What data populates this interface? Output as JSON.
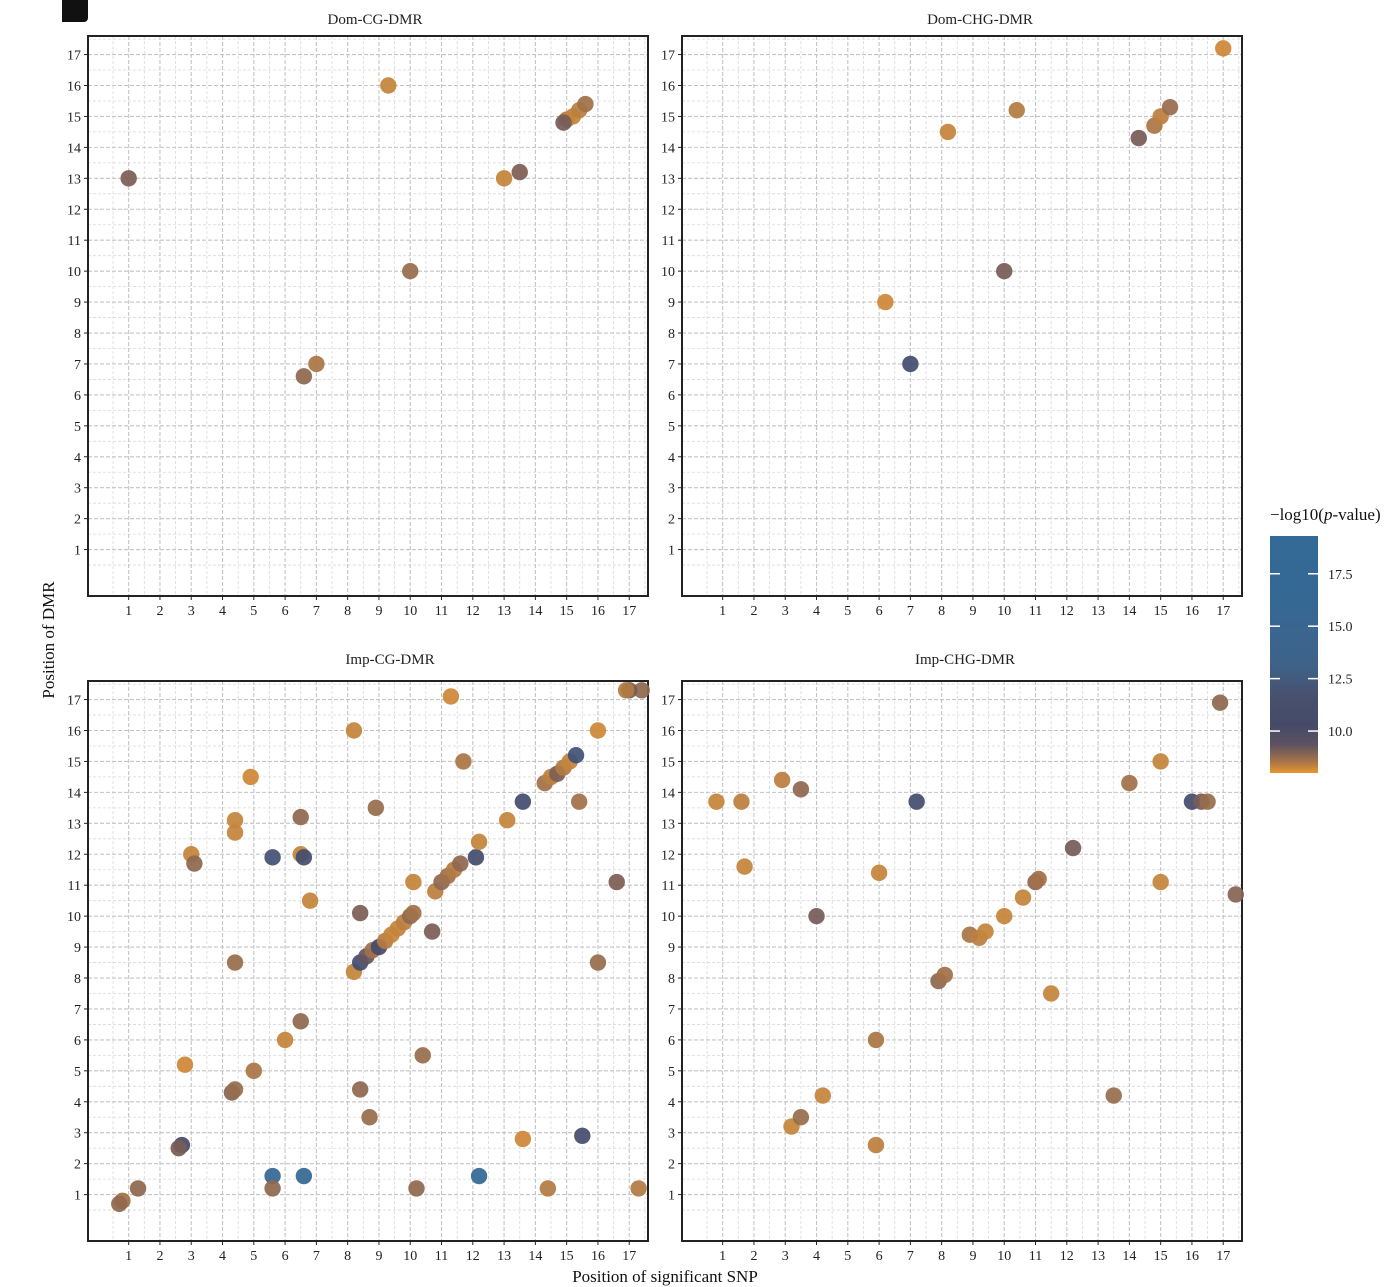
{
  "chart_data": [
    {
      "type": "scatter",
      "title": "Dom-CG-DMR",
      "x_ticks": [
        "1",
        "2",
        "3",
        "4",
        "5",
        "6",
        "7",
        "8",
        "9",
        "10",
        "11",
        "12",
        "13",
        "14",
        "15",
        "16",
        "17"
      ],
      "y_ticks": [
        "1",
        "2",
        "3",
        "4",
        "5",
        "6",
        "7",
        "8",
        "9",
        "10",
        "11",
        "12",
        "13",
        "14",
        "15",
        "16",
        "17"
      ],
      "xlim": [
        -0.3,
        17.6
      ],
      "ylim": [
        -0.5,
        17.6
      ],
      "grid": true,
      "points": [
        {
          "x": 1.0,
          "y": 13.0,
          "p": 9.2
        },
        {
          "x": 9.3,
          "y": 16.0,
          "p": 8.4
        },
        {
          "x": 15.0,
          "y": 14.9,
          "p": 8.6
        },
        {
          "x": 15.2,
          "y": 15.0,
          "p": 8.4
        },
        {
          "x": 15.4,
          "y": 15.2,
          "p": 8.5
        },
        {
          "x": 15.6,
          "y": 15.4,
          "p": 8.8
        },
        {
          "x": 14.9,
          "y": 14.8,
          "p": 9.4
        },
        {
          "x": 13.0,
          "y": 13.0,
          "p": 8.4
        },
        {
          "x": 13.5,
          "y": 13.2,
          "p": 9.2
        },
        {
          "x": 10.0,
          "y": 10.0,
          "p": 8.9
        },
        {
          "x": 6.6,
          "y": 6.6,
          "p": 9.0
        },
        {
          "x": 7.0,
          "y": 7.0,
          "p": 8.7
        }
      ]
    },
    {
      "type": "scatter",
      "title": "Dom-CHG-DMR",
      "x_ticks": [
        "1",
        "2",
        "3",
        "4",
        "5",
        "6",
        "7",
        "8",
        "9",
        "10",
        "11",
        "12",
        "13",
        "14",
        "15",
        "16",
        "17"
      ],
      "y_ticks": [
        "1",
        "2",
        "3",
        "4",
        "5",
        "6",
        "7",
        "8",
        "9",
        "10",
        "11",
        "12",
        "13",
        "14",
        "15",
        "16",
        "17"
      ],
      "xlim": [
        -0.3,
        17.6
      ],
      "ylim": [
        -0.5,
        17.6
      ],
      "grid": true,
      "points": [
        {
          "x": 17.0,
          "y": 17.2,
          "p": 8.3
        },
        {
          "x": 8.2,
          "y": 14.5,
          "p": 8.4
        },
        {
          "x": 10.4,
          "y": 15.2,
          "p": 8.6
        },
        {
          "x": 14.3,
          "y": 14.3,
          "p": 9.3
        },
        {
          "x": 14.8,
          "y": 14.7,
          "p": 8.7
        },
        {
          "x": 15.0,
          "y": 15.0,
          "p": 8.5
        },
        {
          "x": 15.3,
          "y": 15.3,
          "p": 8.9
        },
        {
          "x": 10.0,
          "y": 10.0,
          "p": 9.3
        },
        {
          "x": 6.2,
          "y": 9.0,
          "p": 8.3
        },
        {
          "x": 7.0,
          "y": 7.0,
          "p": 11.0
        }
      ]
    },
    {
      "type": "scatter",
      "title": "Imp-CG-DMR",
      "x_ticks": [
        "1",
        "2",
        "3",
        "4",
        "5",
        "6",
        "7",
        "8",
        "9",
        "10",
        "11",
        "12",
        "13",
        "14",
        "15",
        "16",
        "17"
      ],
      "y_ticks": [
        "1",
        "2",
        "3",
        "4",
        "5",
        "6",
        "7",
        "8",
        "9",
        "10",
        "11",
        "12",
        "13",
        "14",
        "15",
        "16",
        "17"
      ],
      "xlim": [
        -0.3,
        17.6
      ],
      "ylim": [
        -0.5,
        17.6
      ],
      "grid": true,
      "points": [
        {
          "x": 1.3,
          "y": 1.2,
          "p": 9.0
        },
        {
          "x": 0.8,
          "y": 0.8,
          "p": 8.8
        },
        {
          "x": 0.7,
          "y": 0.7,
          "p": 9.0
        },
        {
          "x": 2.7,
          "y": 2.6,
          "p": 10.5
        },
        {
          "x": 2.6,
          "y": 2.5,
          "p": 9.3
        },
        {
          "x": 3.0,
          "y": 12.0,
          "p": 8.4
        },
        {
          "x": 3.1,
          "y": 11.7,
          "p": 9.0
        },
        {
          "x": 2.8,
          "y": 5.2,
          "p": 8.3
        },
        {
          "x": 4.4,
          "y": 13.1,
          "p": 8.4
        },
        {
          "x": 4.4,
          "y": 12.7,
          "p": 8.4
        },
        {
          "x": 4.4,
          "y": 8.5,
          "p": 8.9
        },
        {
          "x": 4.3,
          "y": 4.3,
          "p": 9.1
        },
        {
          "x": 4.4,
          "y": 4.4,
          "p": 8.9
        },
        {
          "x": 4.9,
          "y": 14.5,
          "p": 8.3
        },
        {
          "x": 5.0,
          "y": 5.0,
          "p": 8.7
        },
        {
          "x": 5.6,
          "y": 11.9,
          "p": 11.5
        },
        {
          "x": 5.6,
          "y": 1.6,
          "p": 14.5
        },
        {
          "x": 5.6,
          "y": 1.2,
          "p": 9.0
        },
        {
          "x": 6.0,
          "y": 6.0,
          "p": 8.4
        },
        {
          "x": 6.5,
          "y": 13.2,
          "p": 9.0
        },
        {
          "x": 6.5,
          "y": 12.0,
          "p": 8.4
        },
        {
          "x": 6.6,
          "y": 11.9,
          "p": 11.0
        },
        {
          "x": 6.5,
          "y": 6.6,
          "p": 9.0
        },
        {
          "x": 6.6,
          "y": 1.6,
          "p": 14.5
        },
        {
          "x": 6.8,
          "y": 10.5,
          "p": 8.4
        },
        {
          "x": 8.2,
          "y": 16.0,
          "p": 8.4
        },
        {
          "x": 8.9,
          "y": 13.5,
          "p": 8.9
        },
        {
          "x": 8.4,
          "y": 10.1,
          "p": 9.2
        },
        {
          "x": 8.4,
          "y": 4.4,
          "p": 9.0
        },
        {
          "x": 8.7,
          "y": 3.5,
          "p": 8.9
        },
        {
          "x": 8.2,
          "y": 8.2,
          "p": 8.4
        },
        {
          "x": 8.4,
          "y": 8.5,
          "p": 11.0
        },
        {
          "x": 8.6,
          "y": 8.7,
          "p": 9.8
        },
        {
          "x": 8.8,
          "y": 8.9,
          "p": 8.8
        },
        {
          "x": 9.0,
          "y": 9.0,
          "p": 10.5
        },
        {
          "x": 9.2,
          "y": 9.2,
          "p": 8.6
        },
        {
          "x": 9.4,
          "y": 9.4,
          "p": 8.4
        },
        {
          "x": 9.6,
          "y": 9.6,
          "p": 8.4
        },
        {
          "x": 9.8,
          "y": 9.8,
          "p": 8.5
        },
        {
          "x": 10.0,
          "y": 10.0,
          "p": 9.0
        },
        {
          "x": 10.1,
          "y": 10.1,
          "p": 8.8
        },
        {
          "x": 10.1,
          "y": 11.1,
          "p": 8.4
        },
        {
          "x": 10.2,
          "y": 1.2,
          "p": 9.0
        },
        {
          "x": 10.4,
          "y": 5.5,
          "p": 8.9
        },
        {
          "x": 10.7,
          "y": 9.5,
          "p": 9.2
        },
        {
          "x": 10.8,
          "y": 10.8,
          "p": 8.5
        },
        {
          "x": 11.0,
          "y": 11.1,
          "p": 9.0
        },
        {
          "x": 11.2,
          "y": 11.3,
          "p": 8.8
        },
        {
          "x": 11.4,
          "y": 11.5,
          "p": 8.6
        },
        {
          "x": 11.6,
          "y": 11.7,
          "p": 9.0
        },
        {
          "x": 11.3,
          "y": 17.1,
          "p": 8.3
        },
        {
          "x": 11.7,
          "y": 15.0,
          "p": 8.7
        },
        {
          "x": 12.1,
          "y": 11.9,
          "p": 11.0
        },
        {
          "x": 12.2,
          "y": 12.4,
          "p": 8.4
        },
        {
          "x": 12.2,
          "y": 1.6,
          "p": 14.5
        },
        {
          "x": 13.1,
          "y": 13.1,
          "p": 8.4
        },
        {
          "x": 13.6,
          "y": 13.7,
          "p": 11.0
        },
        {
          "x": 13.6,
          "y": 2.8,
          "p": 8.3
        },
        {
          "x": 14.3,
          "y": 14.3,
          "p": 8.8
        },
        {
          "x": 14.5,
          "y": 14.5,
          "p": 8.5
        },
        {
          "x": 14.7,
          "y": 14.6,
          "p": 9.2
        },
        {
          "x": 14.9,
          "y": 14.8,
          "p": 8.6
        },
        {
          "x": 15.1,
          "y": 15.0,
          "p": 8.4
        },
        {
          "x": 15.3,
          "y": 15.2,
          "p": 11.5
        },
        {
          "x": 14.4,
          "y": 1.2,
          "p": 8.6
        },
        {
          "x": 15.4,
          "y": 13.7,
          "p": 8.8
        },
        {
          "x": 15.5,
          "y": 2.9,
          "p": 11.0
        },
        {
          "x": 16.0,
          "y": 16.0,
          "p": 8.3
        },
        {
          "x": 16.0,
          "y": 8.5,
          "p": 8.9
        },
        {
          "x": 16.6,
          "y": 11.1,
          "p": 9.2
        },
        {
          "x": 17.4,
          "y": 17.3,
          "p": 9.0
        },
        {
          "x": 17.0,
          "y": 17.3,
          "p": 9.4
        },
        {
          "x": 16.9,
          "y": 17.3,
          "p": 8.6
        },
        {
          "x": 17.3,
          "y": 1.2,
          "p": 8.6
        }
      ]
    },
    {
      "type": "scatter",
      "title": "Imp-CHG-DMR",
      "x_ticks": [
        "1",
        "2",
        "3",
        "4",
        "5",
        "6",
        "7",
        "8",
        "9",
        "10",
        "11",
        "12",
        "13",
        "14",
        "15",
        "16",
        "17"
      ],
      "y_ticks": [
        "1",
        "2",
        "3",
        "4",
        "5",
        "6",
        "7",
        "8",
        "9",
        "10",
        "11",
        "12",
        "13",
        "14",
        "15",
        "16",
        "17"
      ],
      "xlim": [
        -0.3,
        17.6
      ],
      "ylim": [
        -0.5,
        17.6
      ],
      "grid": true,
      "points": [
        {
          "x": 0.8,
          "y": 13.7,
          "p": 8.4
        },
        {
          "x": 1.6,
          "y": 13.7,
          "p": 8.5
        },
        {
          "x": 1.7,
          "y": 11.6,
          "p": 8.4
        },
        {
          "x": 2.9,
          "y": 14.4,
          "p": 8.5
        },
        {
          "x": 3.5,
          "y": 14.1,
          "p": 9.0
        },
        {
          "x": 3.2,
          "y": 3.2,
          "p": 8.4
        },
        {
          "x": 3.5,
          "y": 3.5,
          "p": 8.9
        },
        {
          "x": 4.0,
          "y": 10.0,
          "p": 9.4
        },
        {
          "x": 4.2,
          "y": 4.2,
          "p": 8.4
        },
        {
          "x": 6.0,
          "y": 11.4,
          "p": 8.4
        },
        {
          "x": 5.9,
          "y": 6.0,
          "p": 8.7
        },
        {
          "x": 5.9,
          "y": 2.6,
          "p": 8.5
        },
        {
          "x": 7.2,
          "y": 13.7,
          "p": 11.0
        },
        {
          "x": 7.9,
          "y": 7.9,
          "p": 9.0
        },
        {
          "x": 8.1,
          "y": 8.1,
          "p": 8.8
        },
        {
          "x": 8.9,
          "y": 9.4,
          "p": 8.7
        },
        {
          "x": 9.2,
          "y": 9.3,
          "p": 8.5
        },
        {
          "x": 9.4,
          "y": 9.5,
          "p": 8.4
        },
        {
          "x": 10.0,
          "y": 10.0,
          "p": 8.4
        },
        {
          "x": 10.6,
          "y": 10.6,
          "p": 8.4
        },
        {
          "x": 11.0,
          "y": 11.1,
          "p": 9.0
        },
        {
          "x": 11.1,
          "y": 11.2,
          "p": 8.8
        },
        {
          "x": 11.5,
          "y": 7.5,
          "p": 8.4
        },
        {
          "x": 12.2,
          "y": 12.2,
          "p": 9.4
        },
        {
          "x": 13.5,
          "y": 4.2,
          "p": 8.9
        },
        {
          "x": 14.0,
          "y": 14.3,
          "p": 8.8
        },
        {
          "x": 15.0,
          "y": 15.0,
          "p": 8.4
        },
        {
          "x": 15.0,
          "y": 11.1,
          "p": 8.4
        },
        {
          "x": 16.0,
          "y": 13.7,
          "p": 11.0
        },
        {
          "x": 16.3,
          "y": 13.7,
          "p": 9.3
        },
        {
          "x": 16.5,
          "y": 13.7,
          "p": 8.9
        },
        {
          "x": 16.9,
          "y": 16.9,
          "p": 9.0
        },
        {
          "x": 17.4,
          "y": 10.7,
          "p": 9.1
        }
      ]
    }
  ],
  "axes": {
    "xlabel": "Position of significant SNP",
    "ylabel": "Position of DMR"
  },
  "legend": {
    "title_prefix": "−log10(",
    "title_italic": "p",
    "title_suffix": "-value)",
    "ticks": [
      "17.5",
      "15.0",
      "12.5",
      "10.0"
    ],
    "range": [
      8.0,
      19.3
    ],
    "tick_values": [
      17.5,
      15.0,
      12.5,
      10.0
    ],
    "colors": {
      "low": "#e8962e",
      "mid_low": "#7d5f56",
      "mid": "#464a68",
      "mid_high": "#3f5a82",
      "high": "#336a96"
    }
  }
}
